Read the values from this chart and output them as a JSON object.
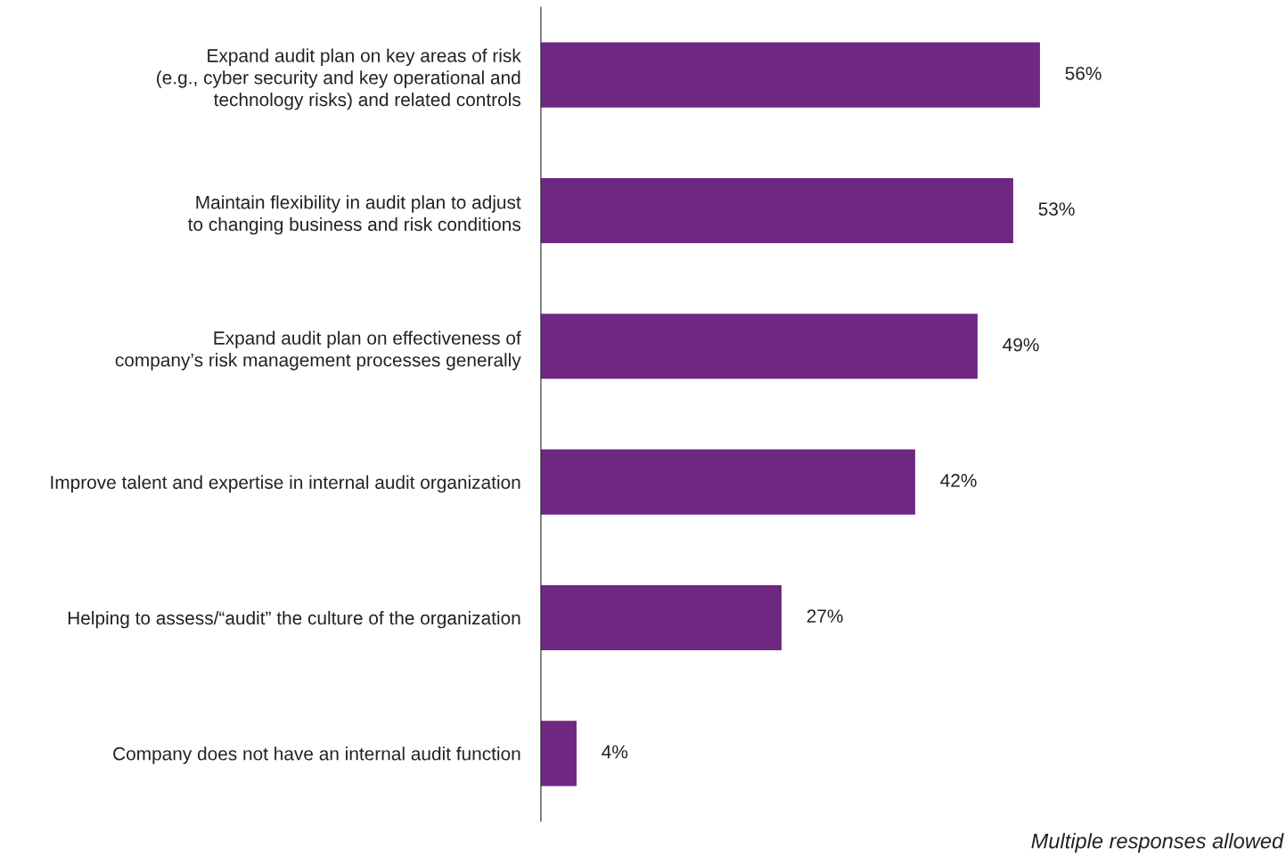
{
  "chart_data": {
    "type": "bar",
    "orientation": "horizontal",
    "categories": [
      "Expand audit plan on key areas of risk\n(e.g., cyber security and key operational and\ntechnology risks) and related controls",
      "Maintain flexibility in audit plan to adjust\nto changing business and risk conditions",
      "Expand audit plan on effectiveness of\ncompany’s risk management processes generally",
      "Improve talent and expertise in internal audit organization",
      "Helping to assess/“audit” the culture of the organization",
      "Company does not have an internal audit function"
    ],
    "values": [
      56,
      53,
      49,
      42,
      27,
      4
    ],
    "value_labels": [
      "56%",
      "53%",
      "49%",
      "42%",
      "27%",
      "4%"
    ],
    "color": "#6e2881",
    "annotations": [
      "Multiple responses allowed"
    ]
  }
}
